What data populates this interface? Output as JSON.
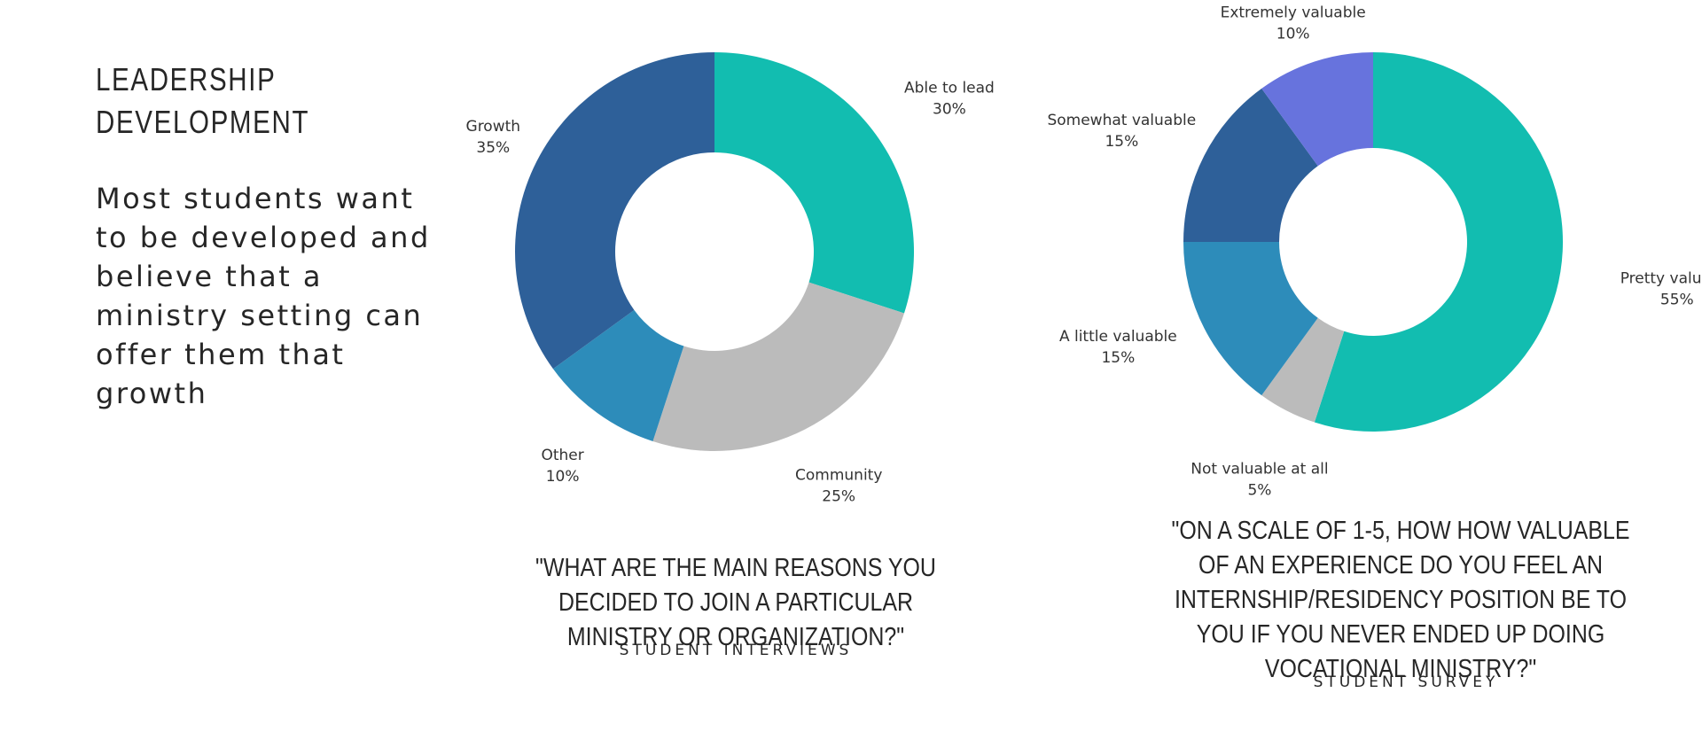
{
  "heading": {
    "title_line1": "LEADERSHIP",
    "title_line2": "DEVELOPMENT",
    "body": "Most students want to be developed and believe that a ministry setting can offer them that growth"
  },
  "chart_data": [
    {
      "type": "pie",
      "donut": true,
      "title": "\"WHAT ARE THE MAIN REASONS YOU DECIDED TO JOIN A PARTICULAR MINISTRY OR ORGANIZATION?\"",
      "source": "STUDENT INTERVIEWS",
      "slices": [
        {
          "label": "Able to lead",
          "value": 30,
          "pct_text": "30%",
          "color": "#12BDB0"
        },
        {
          "label": "Community",
          "value": 25,
          "pct_text": "25%",
          "color": "#BBBBBB"
        },
        {
          "label": "Other",
          "value": 10,
          "pct_text": "10%",
          "color": "#2D8CBA"
        },
        {
          "label": "Growth",
          "value": 35,
          "pct_text": "35%",
          "color": "#2E6099"
        }
      ]
    },
    {
      "type": "pie",
      "donut": true,
      "title": "\"ON A SCALE OF 1-5, HOW HOW VALUABLE OF AN EXPERIENCE DO YOU FEEL AN INTERNSHIP/RESIDENCY POSITION BE TO YOU IF YOU NEVER ENDED UP DOING VOCATIONAL MINISTRY?\"",
      "source": "STUDENT SURVEY",
      "slices": [
        {
          "label": "Pretty valuable",
          "value": 55,
          "pct_text": "55%",
          "color": "#12BDB0"
        },
        {
          "label": "Not valuable at all",
          "value": 5,
          "pct_text": "5%",
          "color": "#BBBBBB"
        },
        {
          "label": "A little valuable",
          "value": 15,
          "pct_text": "15%",
          "color": "#2D8CBA"
        },
        {
          "label": "Somewhat valuable",
          "value": 15,
          "pct_text": "15%",
          "color": "#2E6099"
        },
        {
          "label": "Extremely valuable",
          "value": 10,
          "pct_text": "10%",
          "color": "#6773DD"
        }
      ]
    }
  ]
}
